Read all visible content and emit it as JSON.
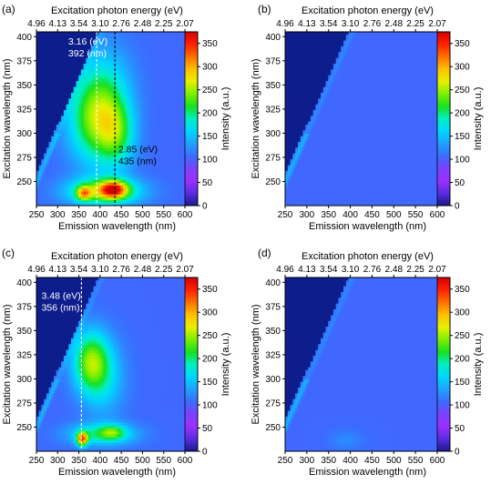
{
  "figure": {
    "colorscale": [
      "#1a1a8c",
      "#5a2be0",
      "#9b30ff",
      "#7d40ff",
      "#3b6cff",
      "#1fa2ff",
      "#00d6ff",
      "#00f0c0",
      "#18e020",
      "#7cf000",
      "#e8f000",
      "#ffc000",
      "#ff7000",
      "#ff2000",
      "#d60000"
    ],
    "colors": {
      "diag_background": "#0d1d8c",
      "base_field": "#9b30ff",
      "marker_line_black": "#000000",
      "marker_line_white": "#ffffff"
    }
  },
  "chart_data": [
    {
      "panel_label": "(a)",
      "type": "heatmap",
      "title": "",
      "xlabel": "Emission wavelength (nm)",
      "ylabel": "Excitation wavelength (nm)",
      "top_xlabel": "Excitation photon energy (eV)",
      "colorbar_label": "Intensity (a.u.)",
      "xlim": [
        250,
        600
      ],
      "ylim": [
        225,
        405
      ],
      "zlim": [
        0,
        375
      ],
      "x_ticks": [
        250,
        300,
        350,
        400,
        450,
        500,
        550,
        600
      ],
      "y_ticks": [
        250,
        275,
        300,
        325,
        350,
        375,
        400
      ],
      "top_ticks": [
        "4.96",
        "4.13",
        "3.54",
        "3.10",
        "2.76",
        "2.48",
        "2.25",
        "2.07"
      ],
      "colorbar_ticks": [
        0,
        50,
        100,
        150,
        200,
        250,
        300,
        350
      ],
      "peaks": [
        {
          "x": 390,
          "y": 315,
          "sx": 45,
          "sy": 32,
          "amp": 185
        },
        {
          "x": 440,
          "y": 300,
          "sx": 30,
          "sy": 24,
          "amp": 115
        },
        {
          "x": 410,
          "y": 240,
          "sx": 60,
          "sy": 10,
          "amp": 190
        },
        {
          "x": 432,
          "y": 242,
          "sx": 22,
          "sy": 6,
          "amp": 230
        },
        {
          "x": 362,
          "y": 238,
          "sx": 12,
          "sy": 5,
          "amp": 175
        },
        {
          "x": 415,
          "y": 355,
          "sx": 45,
          "sy": 30,
          "amp": 55
        }
      ],
      "markers": [
        {
          "x": 392,
          "color": "white",
          "label_energy": "3.16 (eV)",
          "label_wavelength": "392 (nm)",
          "label_x": 325,
          "label_y": 392
        },
        {
          "x": 435,
          "color": "black",
          "label_energy": "2.85 (eV)",
          "label_wavelength": "435 (nm)",
          "label_x": 443,
          "label_y": 280
        }
      ]
    },
    {
      "panel_label": "(b)",
      "type": "heatmap",
      "title": "",
      "xlabel": "Emission wavelength (nm)",
      "ylabel": "Excitation wavelength (nm)",
      "top_xlabel": "Excitation photon energy (eV)",
      "colorbar_label": "Intensity (a.u.)",
      "xlim": [
        250,
        600
      ],
      "ylim": [
        225,
        405
      ],
      "zlim": [
        0,
        375
      ],
      "x_ticks": [
        250,
        300,
        350,
        400,
        450,
        500,
        550,
        600
      ],
      "y_ticks": [
        250,
        275,
        300,
        325,
        350,
        375,
        400
      ],
      "top_ticks": [
        "4.96",
        "4.13",
        "3.54",
        "3.10",
        "2.76",
        "2.48",
        "2.25",
        "2.07"
      ],
      "colorbar_ticks": [
        0,
        50,
        100,
        150,
        200,
        250,
        300,
        350
      ],
      "peaks": [],
      "markers": []
    },
    {
      "panel_label": "(c)",
      "type": "heatmap",
      "title": "",
      "xlabel": "Emission wavelength (nm)",
      "ylabel": "Excitation wavelength (nm)",
      "top_xlabel": "Excitation photon energy (eV)",
      "colorbar_label": "Intensity (a.u.)",
      "xlim": [
        250,
        600
      ],
      "ylim": [
        225,
        405
      ],
      "zlim": [
        0,
        375
      ],
      "x_ticks": [
        250,
        300,
        350,
        400,
        450,
        500,
        550,
        600
      ],
      "y_ticks": [
        250,
        275,
        300,
        325,
        350,
        375,
        400
      ],
      "top_ticks": [
        "4.96",
        "4.13",
        "3.54",
        "3.10",
        "2.76",
        "2.48",
        "2.25",
        "2.07"
      ],
      "colorbar_ticks": [
        0,
        50,
        100,
        150,
        200,
        250,
        300,
        350
      ],
      "peaks": [
        {
          "x": 378,
          "y": 318,
          "sx": 30,
          "sy": 22,
          "amp": 175
        },
        {
          "x": 410,
          "y": 300,
          "sx": 35,
          "sy": 28,
          "amp": 70
        },
        {
          "x": 405,
          "y": 243,
          "sx": 55,
          "sy": 8,
          "amp": 125
        },
        {
          "x": 358,
          "y": 238,
          "sx": 9,
          "sy": 5,
          "amp": 270
        },
        {
          "x": 430,
          "y": 245,
          "sx": 20,
          "sy": 5,
          "amp": 90
        }
      ],
      "markers": [
        {
          "x": 356,
          "color": "white",
          "label_energy": "3.48 (eV)",
          "label_wavelength": "356 (nm)",
          "label_x": 262,
          "label_y": 383
        }
      ]
    },
    {
      "panel_label": "(d)",
      "type": "heatmap",
      "title": "",
      "xlabel": "Emission wavelength (nm)",
      "ylabel": "Excitation wavelength (nm)",
      "top_xlabel": "Excitation photon energy (eV)",
      "colorbar_label": "Intensity (a.u.)",
      "xlim": [
        250,
        600
      ],
      "ylim": [
        225,
        405
      ],
      "zlim": [
        0,
        375
      ],
      "x_ticks": [
        250,
        300,
        350,
        400,
        450,
        500,
        550,
        600
      ],
      "y_ticks": [
        250,
        275,
        300,
        325,
        350,
        375,
        400
      ],
      "top_ticks": [
        "4.96",
        "4.13",
        "3.54",
        "3.10",
        "2.76",
        "2.48",
        "2.25",
        "2.07"
      ],
      "colorbar_ticks": [
        0,
        50,
        100,
        150,
        200,
        250,
        300,
        350
      ],
      "peaks": [
        {
          "x": 390,
          "y": 237,
          "sx": 28,
          "sy": 7,
          "amp": 25
        }
      ],
      "markers": []
    }
  ]
}
